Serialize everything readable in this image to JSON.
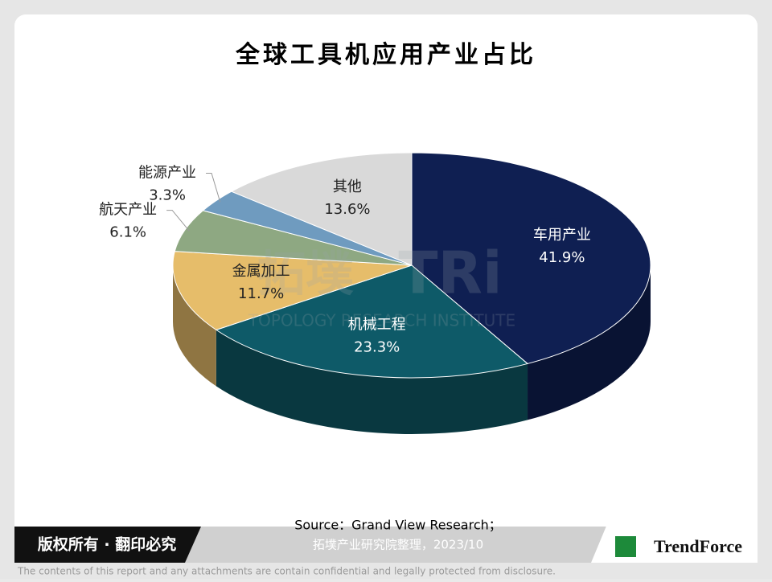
{
  "chart_data": {
    "type": "pie3d",
    "title": "全球工具机应用产业占比",
    "categories": [
      "车用产业",
      "机械工程",
      "金属加工",
      "航天产业",
      "能源产业",
      "其他"
    ],
    "values": [
      41.9,
      23.3,
      11.7,
      6.1,
      3.3,
      13.6
    ],
    "value_labels": [
      "41.9%",
      "23.3%",
      "11.7%",
      "6.1%",
      "3.3%",
      "13.6%"
    ],
    "colors": [
      "#0f1f52",
      "#0e5a68",
      "#e6bd6a",
      "#8ea882",
      "#6f9bbf",
      "#d9d9d9"
    ]
  },
  "watermark": {
    "cn": "拓墣",
    "logo": "TRi",
    "en": "TOPOLOGY RESEARCH INSTITUTE"
  },
  "source": [
    "Source：Grand View Research；",
    "拓墣产业研究院整理，2023/10"
  ],
  "footer": {
    "copyright": "版权所有 · 翻印必究",
    "brand": "TrendForce",
    "disclaimer": "The contents of this report and any attachments are contain confidential and legally protected from disclosure."
  }
}
